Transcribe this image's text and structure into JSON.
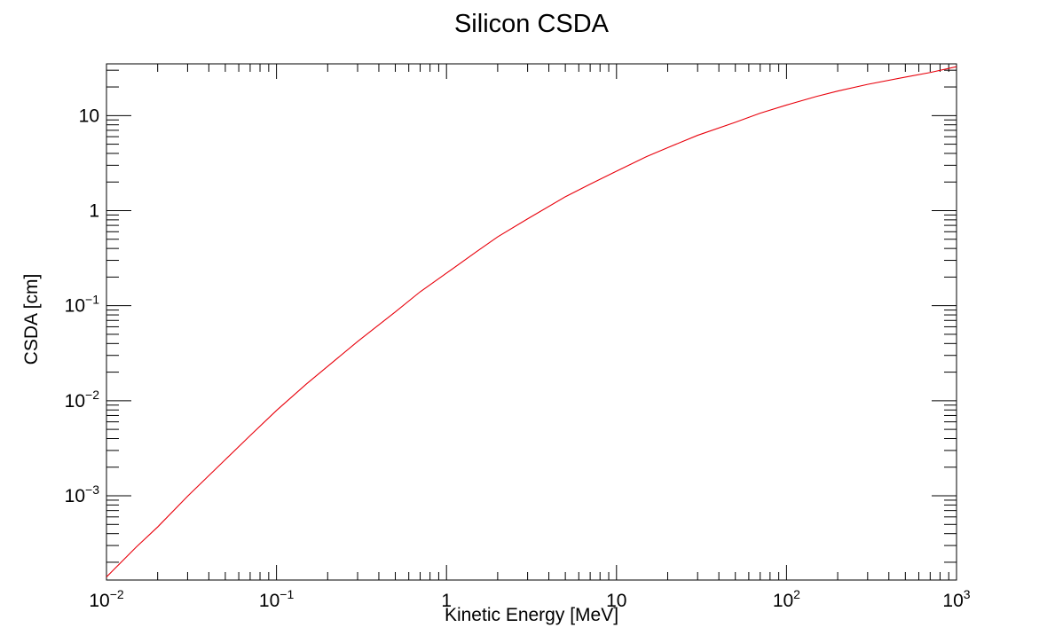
{
  "chart_data": {
    "type": "line",
    "title": "Silicon CSDA",
    "xlabel": "Kinetic Energy [MeV]",
    "ylabel": "CSDA [cm]",
    "xscale": "log",
    "yscale": "log",
    "xlim": [
      0.01,
      1000
    ],
    "ylim": [
      0.00013,
      35
    ],
    "grid": false,
    "x_ticks": [
      {
        "base": "10",
        "exp": "−2",
        "value": 0.01
      },
      {
        "base": "10",
        "exp": "−1",
        "value": 0.1
      },
      {
        "base": "1",
        "exp": "",
        "value": 1
      },
      {
        "base": "10",
        "exp": "",
        "value": 10
      },
      {
        "base": "10",
        "exp": "2",
        "value": 100
      },
      {
        "base": "10",
        "exp": "3",
        "value": 1000
      }
    ],
    "y_ticks": [
      {
        "base": "10",
        "exp": "−3",
        "value": 0.001
      },
      {
        "base": "10",
        "exp": "−2",
        "value": 0.01
      },
      {
        "base": "10",
        "exp": "−1",
        "value": 0.1
      },
      {
        "base": "1",
        "exp": "",
        "value": 1
      },
      {
        "base": "10",
        "exp": "",
        "value": 10
      }
    ],
    "series": [
      {
        "color": "#e8000b",
        "x": [
          0.01,
          0.015,
          0.02,
          0.03,
          0.05,
          0.07,
          0.1,
          0.15,
          0.2,
          0.3,
          0.5,
          0.7,
          1,
          1.5,
          2,
          3,
          5,
          7,
          10,
          15,
          20,
          30,
          50,
          70,
          100,
          150,
          200,
          300,
          500,
          700,
          1000
        ],
        "y": [
          0.00014,
          0.00029,
          0.00047,
          0.00099,
          0.0024,
          0.0043,
          0.0079,
          0.015,
          0.023,
          0.042,
          0.086,
          0.14,
          0.22,
          0.37,
          0.53,
          0.82,
          1.4,
          1.9,
          2.6,
          3.7,
          4.6,
          6.2,
          8.5,
          10.6,
          12.9,
          15.9,
          18.1,
          21.3,
          25.4,
          28.4,
          32.7
        ]
      }
    ]
  },
  "colors": {
    "frame": "#000000",
    "background": "#ffffff",
    "series": "#e8000b"
  }
}
